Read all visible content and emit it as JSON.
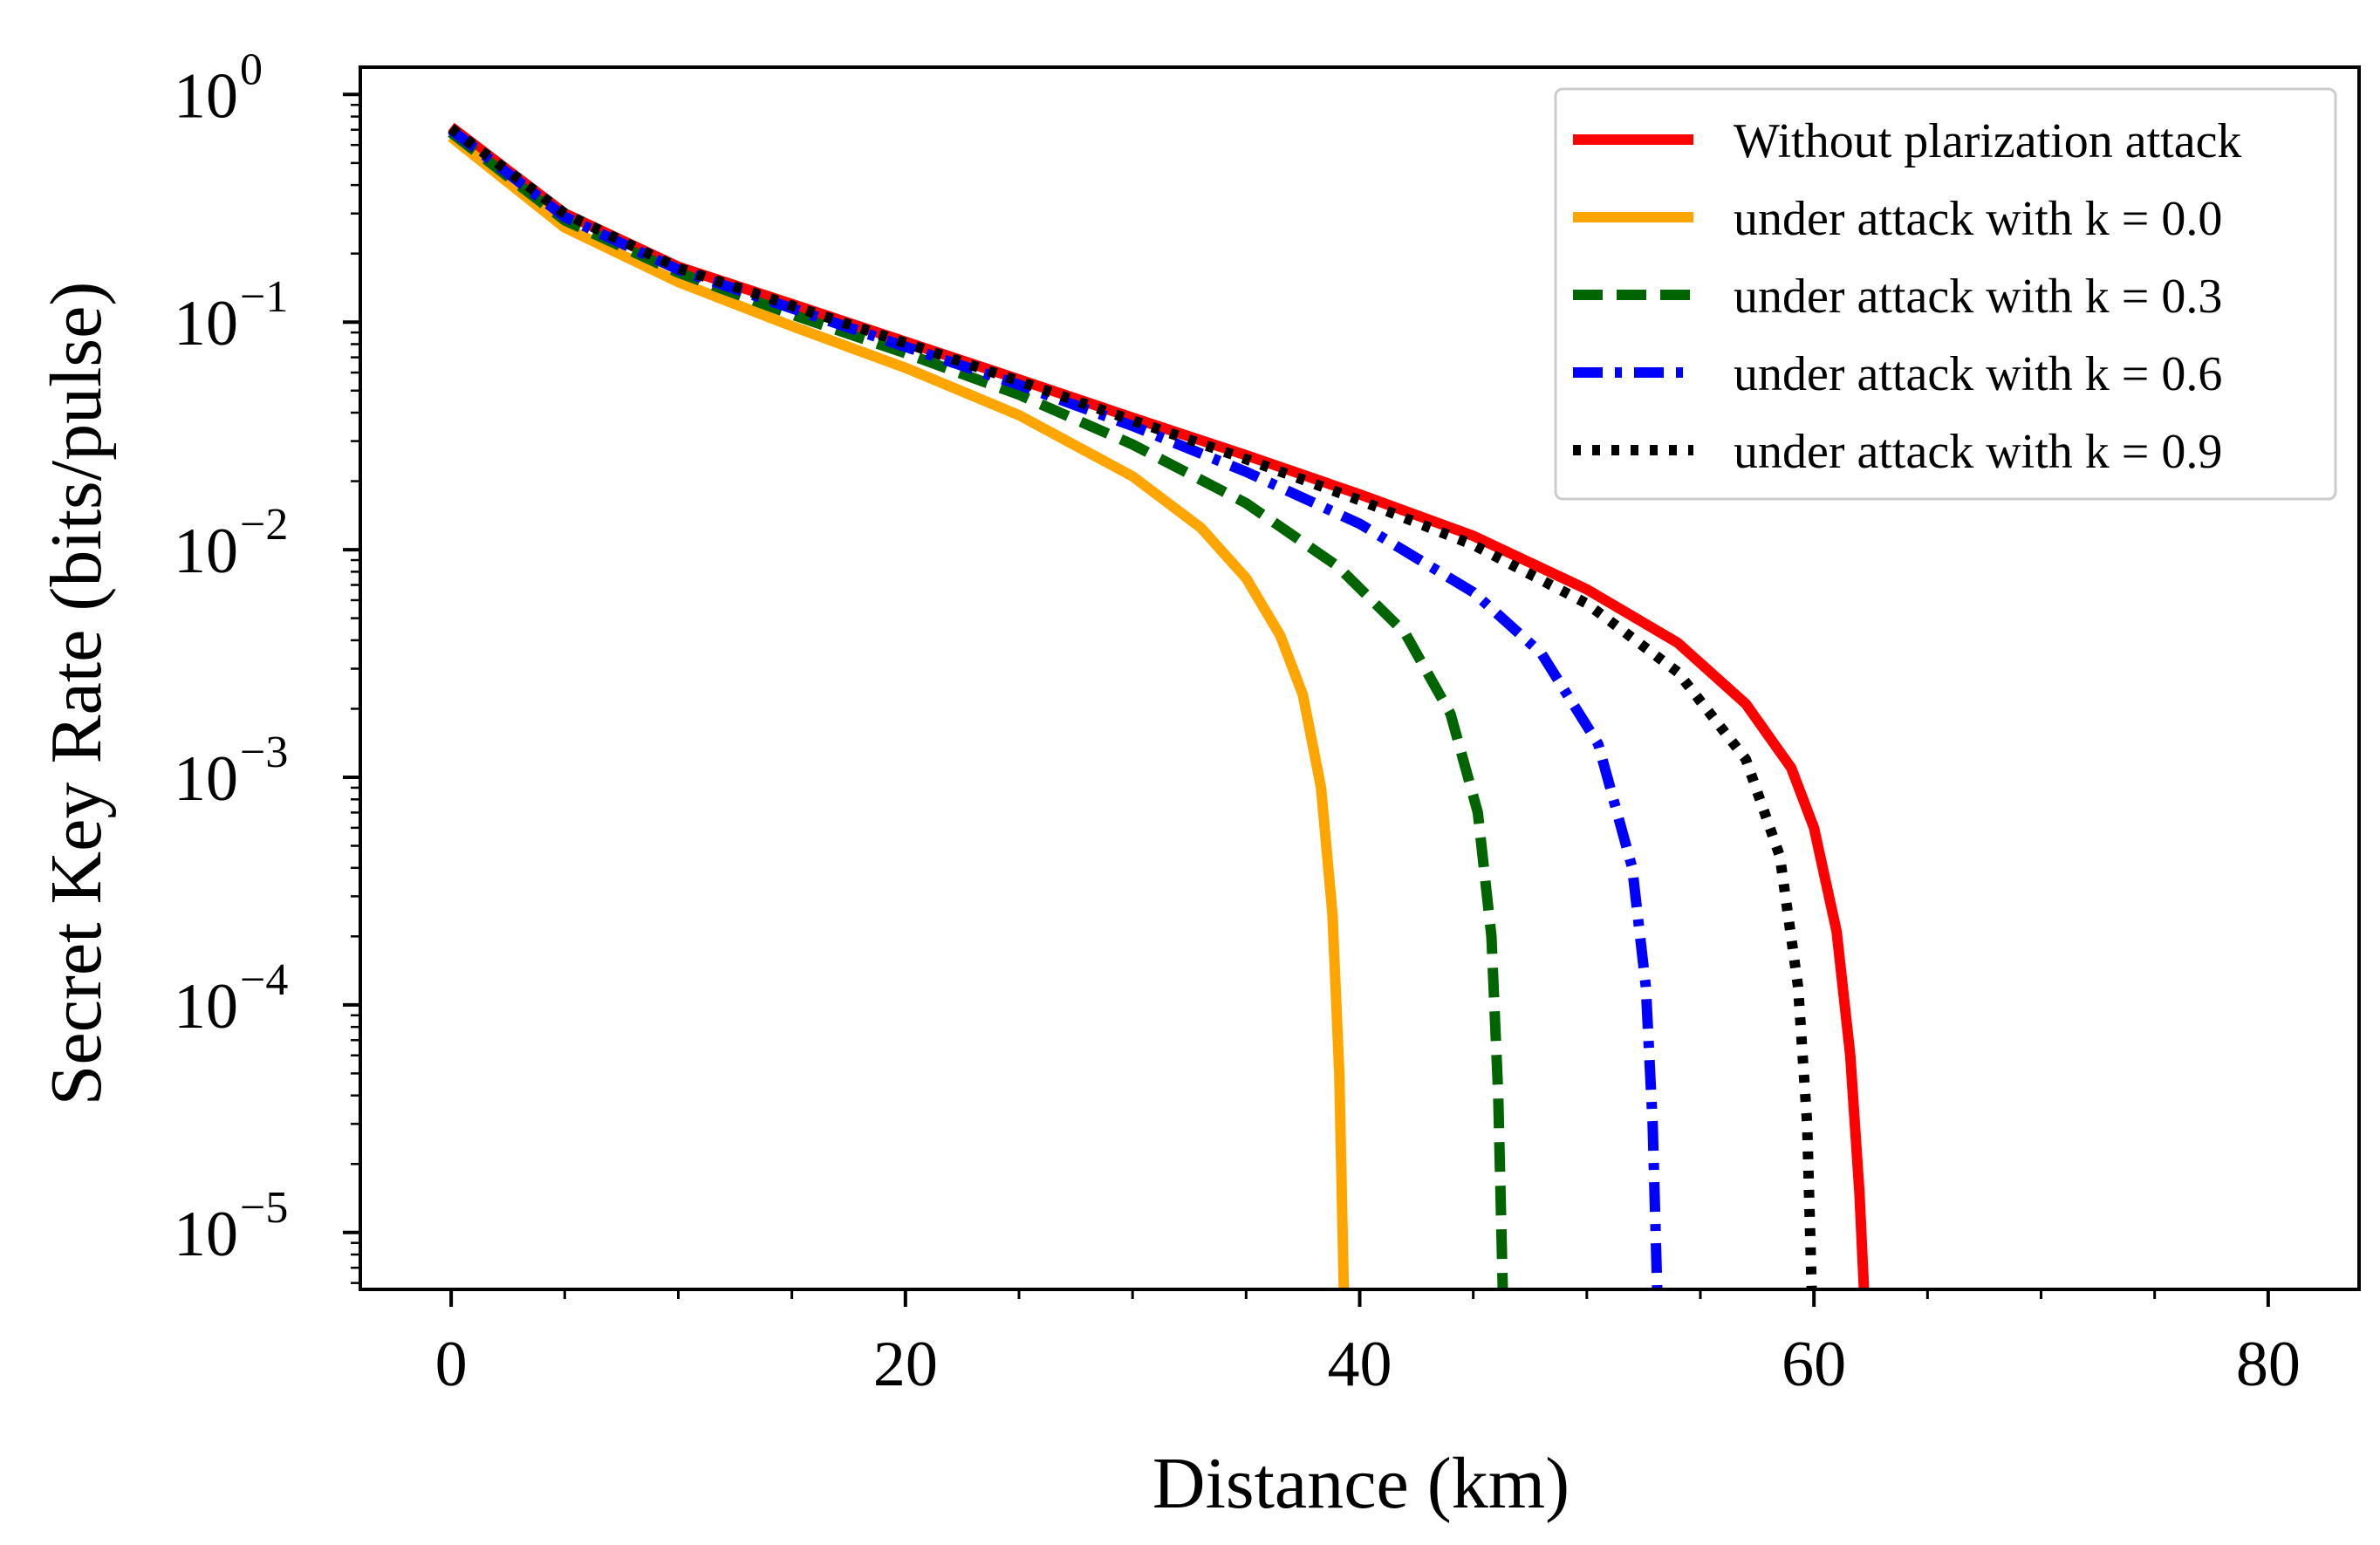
{
  "chart_data": {
    "type": "line",
    "title": "",
    "xlabel": "Distance (km)",
    "ylabel": "Secret Key Rate (bits/pulse)",
    "xlim": [
      -4,
      84
    ],
    "ylim_log10": [
      -5.25,
      0.12
    ],
    "yscale": "log",
    "xticks": [
      0,
      20,
      40,
      60,
      80
    ],
    "xtick_labels": [
      "0",
      "20",
      "40",
      "60",
      "80"
    ],
    "yticks_exp": [
      0,
      -1,
      -2,
      -3,
      -4,
      -5
    ],
    "ytick_base": "10",
    "ytick_exp_labels": [
      "0",
      "−1",
      "−2",
      "−3",
      "−4",
      "−5"
    ],
    "legend_position": "top-right",
    "series": [
      {
        "name": "Without plarization attack",
        "color": "#ff0000",
        "style": "solid",
        "x": [
          0,
          5,
          10,
          15,
          20,
          25,
          30,
          35,
          40,
          45,
          50,
          54,
          57,
          59,
          60,
          61,
          61.6,
          62,
          62.2
        ],
        "y": [
          0.72,
          0.3,
          0.175,
          0.12,
          0.082,
          0.056,
          0.038,
          0.026,
          0.0175,
          0.0115,
          0.0067,
          0.0039,
          0.0021,
          0.0011,
          0.0006,
          0.00021,
          6e-05,
          1.5e-05,
          5e-06
        ]
      },
      {
        "name": "under attack with k = 0.0",
        "color": "#ffa500",
        "style": "solid",
        "x": [
          0,
          5,
          10,
          15,
          20,
          25,
          30,
          33,
          35,
          36.5,
          37.5,
          38.3,
          38.8,
          39.1,
          39.3
        ],
        "y": [
          0.65,
          0.26,
          0.15,
          0.096,
          0.063,
          0.039,
          0.021,
          0.0125,
          0.0075,
          0.0042,
          0.0023,
          0.0009,
          0.00025,
          5e-05,
          5e-06
        ]
      },
      {
        "name": "under attack with k = 0.3",
        "color": "#006400",
        "style": "dashed",
        "x": [
          0,
          5,
          10,
          15,
          20,
          25,
          30,
          35,
          39,
          42,
          44,
          45.2,
          45.8,
          46.1,
          46.3
        ],
        "y": [
          0.68,
          0.28,
          0.165,
          0.108,
          0.073,
          0.048,
          0.029,
          0.016,
          0.0085,
          0.0043,
          0.0019,
          0.0007,
          0.0002,
          4e-05,
          5e-06
        ]
      },
      {
        "name": "under attack with k = 0.6",
        "color": "#0000ff",
        "style": "dashdot",
        "x": [
          0,
          5,
          10,
          15,
          20,
          25,
          30,
          35,
          40,
          45,
          48,
          50.5,
          52,
          52.6,
          52.9,
          53.1
        ],
        "y": [
          0.7,
          0.29,
          0.17,
          0.115,
          0.078,
          0.053,
          0.035,
          0.022,
          0.013,
          0.0065,
          0.0035,
          0.0014,
          0.0004,
          0.00012,
          3e-05,
          5e-06
        ]
      },
      {
        "name": "under attack with k = 0.9",
        "color": "#000000",
        "style": "dotted",
        "x": [
          0,
          5,
          10,
          15,
          20,
          25,
          30,
          35,
          40,
          45,
          50,
          54,
          57,
          58.5,
          59.3,
          59.7,
          59.9
        ],
        "y": [
          0.71,
          0.3,
          0.173,
          0.118,
          0.081,
          0.055,
          0.037,
          0.025,
          0.0165,
          0.0105,
          0.0058,
          0.0029,
          0.0012,
          0.00045,
          0.00012,
          3e-05,
          5e-06
        ]
      }
    ]
  }
}
